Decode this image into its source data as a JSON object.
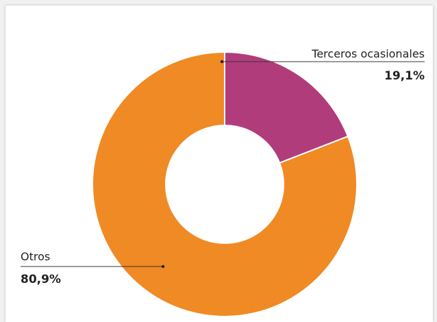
{
  "chart_data": {
    "type": "pie",
    "variant": "donut",
    "categories": [
      "Terceros ocasionales",
      "Otros"
    ],
    "values": [
      19.1,
      80.9
    ],
    "value_labels": [
      "19,1%",
      "80,9%"
    ],
    "colors": [
      "#b13c7c",
      "#f08a24"
    ],
    "title": "",
    "legend": "none"
  }
}
